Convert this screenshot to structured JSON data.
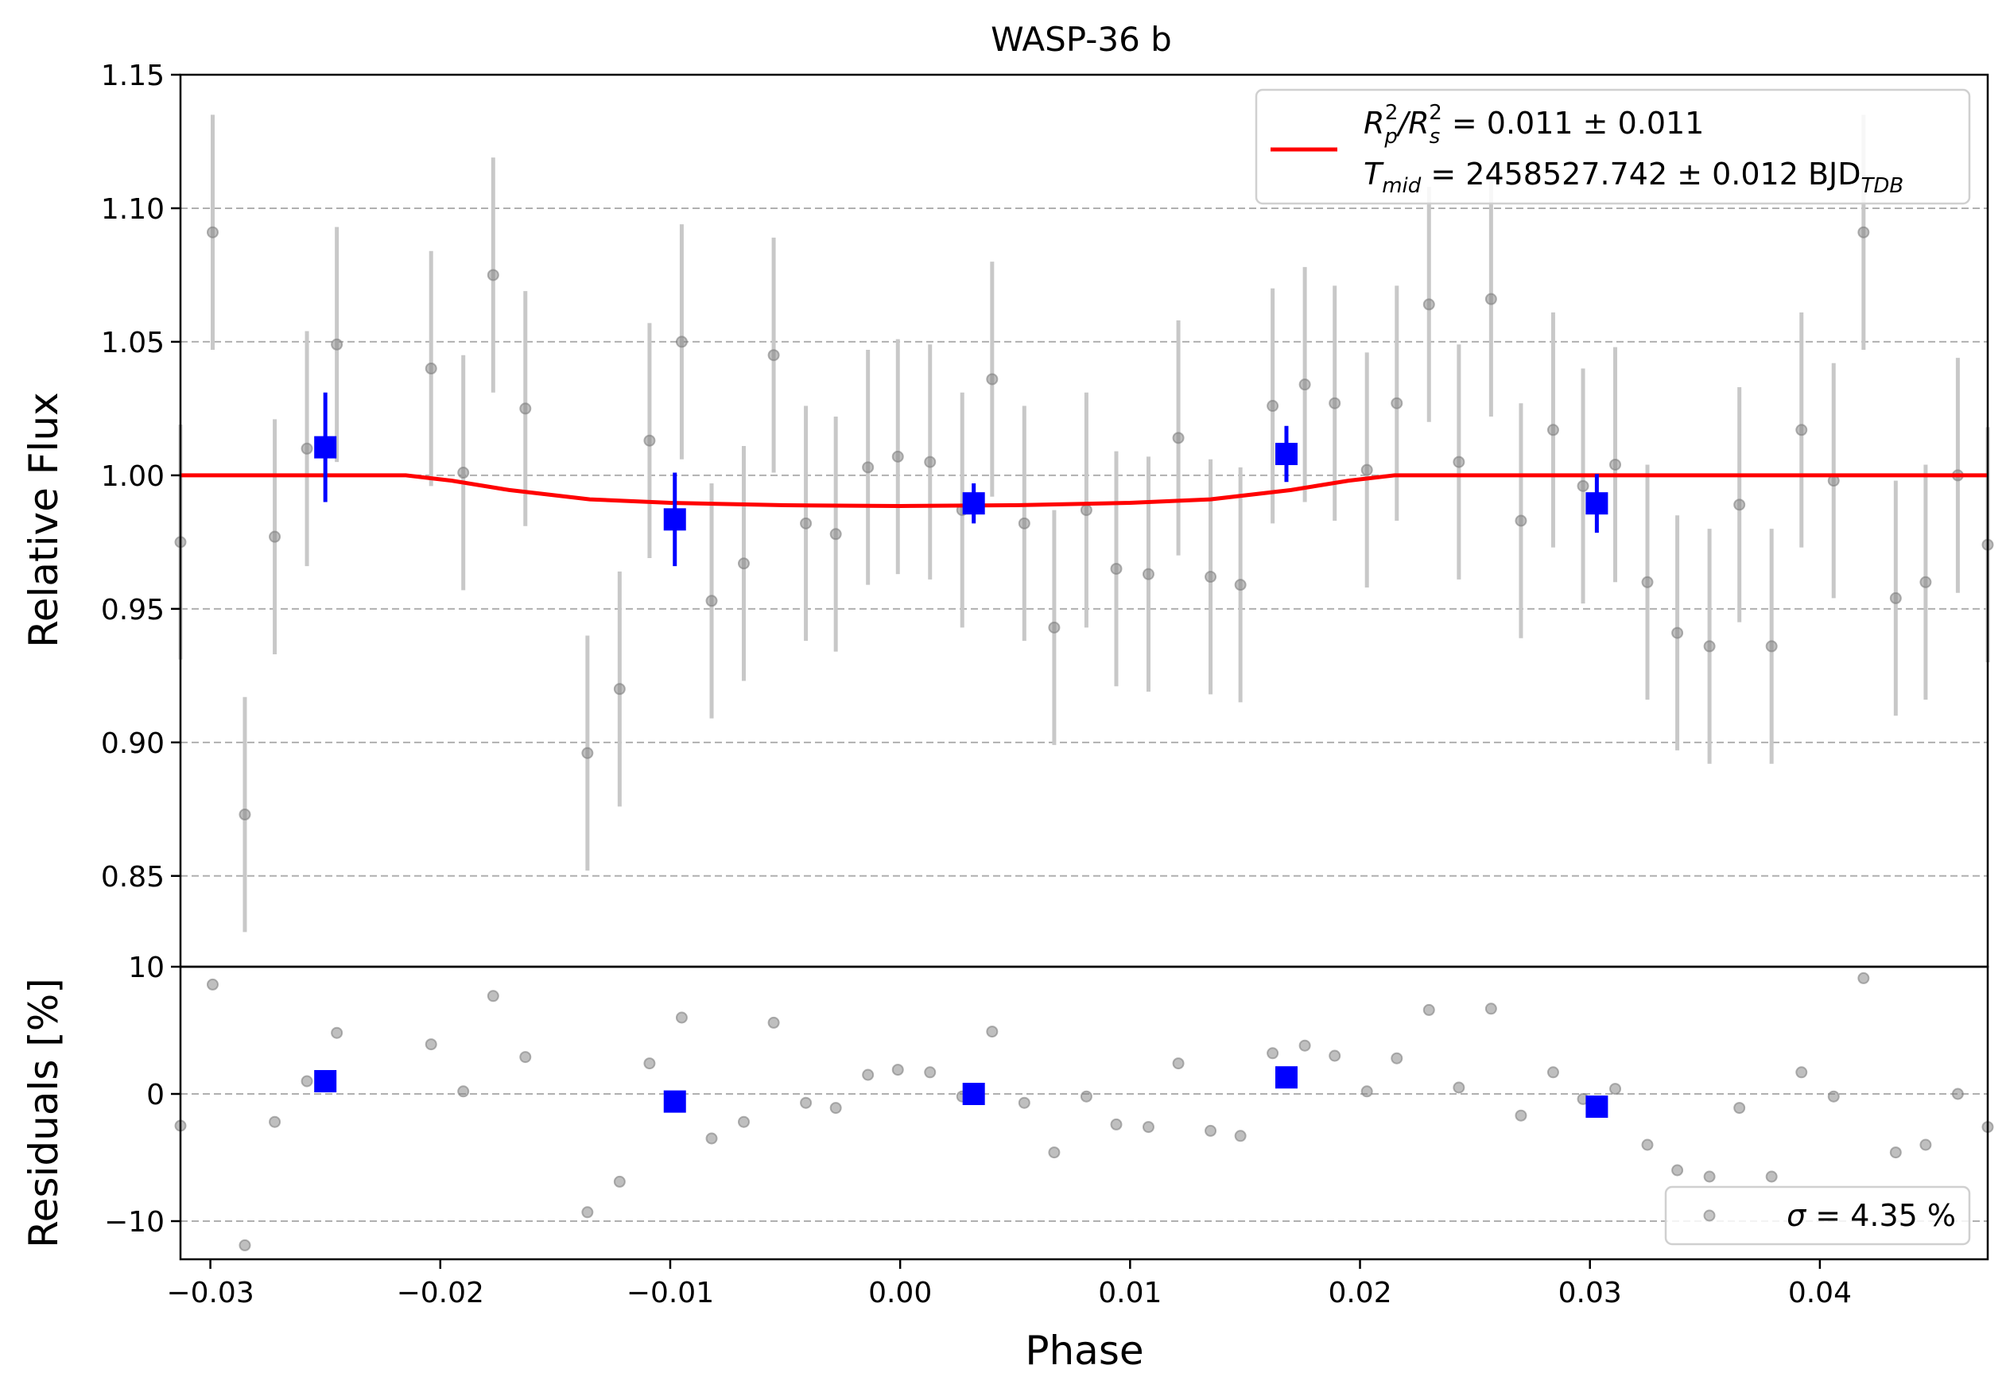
{
  "chart_data": [
    {
      "type": "scatter",
      "title": "WASP-36 b",
      "xlabel": "Phase",
      "ylabel": "Relative Flux",
      "xlim": [
        -0.0313,
        0.0473
      ],
      "ylim": [
        0.816,
        1.15
      ],
      "yticks": [
        "0.85",
        "0.90",
        "0.95",
        "1.00",
        "1.05",
        "1.10",
        "1.15"
      ],
      "grid": "horizontal dashed",
      "legend": {
        "placement": "top-right",
        "line1_pre": "R",
        "line1_sub1": "p",
        "line1_sup1": "2",
        "line1_mid": "/R",
        "line1_sub2": "s",
        "line1_sup2": "2",
        "line1_post": " = 0.011 ± 0.011",
        "line2_pre": "T",
        "line2_sub": "mid",
        "line2_post": " = 2458527.742 ± 0.012 BJD",
        "line2_unit_sub": "TDB"
      },
      "colors": {
        "data": "#808080",
        "errorbar": "#c8c8c8",
        "binned": "#0000ff",
        "model": "#ff0000",
        "grid": "#b0b0b0"
      },
      "series": [
        {
          "kind": "data",
          "points": [
            {
              "x": -0.0313,
              "y": 0.975,
              "err": 0.044
            },
            {
              "x": -0.0299,
              "y": 1.091,
              "err": 0.044
            },
            {
              "x": -0.0285,
              "y": 0.873,
              "err": 0.044
            },
            {
              "x": -0.0272,
              "y": 0.977,
              "err": 0.044
            },
            {
              "x": -0.0258,
              "y": 1.01,
              "err": 0.044
            },
            {
              "x": -0.0245,
              "y": 1.049,
              "err": 0.044
            },
            {
              "x": -0.0204,
              "y": 1.04,
              "err": 0.044
            },
            {
              "x": -0.019,
              "y": 1.001,
              "err": 0.044
            },
            {
              "x": -0.0177,
              "y": 1.075,
              "err": 0.044
            },
            {
              "x": -0.0163,
              "y": 1.025,
              "err": 0.044
            },
            {
              "x": -0.0136,
              "y": 0.896,
              "err": 0.044
            },
            {
              "x": -0.0122,
              "y": 0.92,
              "err": 0.044
            },
            {
              "x": -0.0109,
              "y": 1.013,
              "err": 0.044
            },
            {
              "x": -0.0095,
              "y": 1.05,
              "err": 0.044
            },
            {
              "x": -0.0082,
              "y": 0.953,
              "err": 0.044
            },
            {
              "x": -0.0068,
              "y": 0.967,
              "err": 0.044
            },
            {
              "x": -0.0055,
              "y": 1.045,
              "err": 0.044
            },
            {
              "x": -0.0041,
              "y": 0.982,
              "err": 0.044
            },
            {
              "x": -0.0028,
              "y": 0.978,
              "err": 0.044
            },
            {
              "x": -0.0014,
              "y": 1.003,
              "err": 0.044
            },
            {
              "x": -0.0001,
              "y": 1.007,
              "err": 0.044
            },
            {
              "x": 0.0013,
              "y": 1.005,
              "err": 0.044
            },
            {
              "x": 0.0027,
              "y": 0.987,
              "err": 0.044
            },
            {
              "x": 0.004,
              "y": 1.036,
              "err": 0.044
            },
            {
              "x": 0.0054,
              "y": 0.982,
              "err": 0.044
            },
            {
              "x": 0.0067,
              "y": 0.943,
              "err": 0.044
            },
            {
              "x": 0.0081,
              "y": 0.987,
              "err": 0.044
            },
            {
              "x": 0.0094,
              "y": 0.965,
              "err": 0.044
            },
            {
              "x": 0.0108,
              "y": 0.963,
              "err": 0.044
            },
            {
              "x": 0.0121,
              "y": 1.014,
              "err": 0.044
            },
            {
              "x": 0.0135,
              "y": 0.962,
              "err": 0.044
            },
            {
              "x": 0.0148,
              "y": 0.959,
              "err": 0.044
            },
            {
              "x": 0.0162,
              "y": 1.026,
              "err": 0.044
            },
            {
              "x": 0.0176,
              "y": 1.034,
              "err": 0.044
            },
            {
              "x": 0.0189,
              "y": 1.027,
              "err": 0.044
            },
            {
              "x": 0.0203,
              "y": 1.002,
              "err": 0.044
            },
            {
              "x": 0.0216,
              "y": 1.027,
              "err": 0.044
            },
            {
              "x": 0.023,
              "y": 1.064,
              "err": 0.044
            },
            {
              "x": 0.0243,
              "y": 1.005,
              "err": 0.044
            },
            {
              "x": 0.0257,
              "y": 1.066,
              "err": 0.044
            },
            {
              "x": 0.027,
              "y": 0.983,
              "err": 0.044
            },
            {
              "x": 0.0284,
              "y": 1.017,
              "err": 0.044
            },
            {
              "x": 0.0297,
              "y": 0.996,
              "err": 0.044
            },
            {
              "x": 0.0311,
              "y": 1.004,
              "err": 0.044
            },
            {
              "x": 0.0325,
              "y": 0.96,
              "err": 0.044
            },
            {
              "x": 0.0338,
              "y": 0.941,
              "err": 0.044
            },
            {
              "x": 0.0352,
              "y": 0.936,
              "err": 0.044
            },
            {
              "x": 0.0365,
              "y": 0.989,
              "err": 0.044
            },
            {
              "x": 0.0379,
              "y": 0.936,
              "err": 0.044
            },
            {
              "x": 0.0392,
              "y": 1.017,
              "err": 0.044
            },
            {
              "x": 0.0406,
              "y": 0.998,
              "err": 0.044
            },
            {
              "x": 0.0419,
              "y": 1.091,
              "err": 0.044
            },
            {
              "x": 0.0433,
              "y": 0.954,
              "err": 0.044
            },
            {
              "x": 0.0446,
              "y": 0.96,
              "err": 0.044
            },
            {
              "x": 0.046,
              "y": 1.0,
              "err": 0.044
            },
            {
              "x": 0.0473,
              "y": 0.974,
              "err": 0.044
            }
          ]
        },
        {
          "kind": "binned",
          "points": [
            {
              "x": -0.025,
              "y": 1.0105,
              "err": 0.0205
            },
            {
              "x": -0.0098,
              "y": 0.9835,
              "err": 0.0175
            },
            {
              "x": 0.0032,
              "y": 0.9895,
              "err": 0.0075
            },
            {
              "x": 0.0168,
              "y": 1.008,
              "err": 0.0105
            },
            {
              "x": 0.0303,
              "y": 0.9895,
              "err": 0.011
            }
          ]
        },
        {
          "kind": "model",
          "points": [
            {
              "x": -0.0313,
              "y": 1.0
            },
            {
              "x": -0.0215,
              "y": 1.0
            },
            {
              "x": -0.0195,
              "y": 0.998
            },
            {
              "x": -0.017,
              "y": 0.9945
            },
            {
              "x": -0.0135,
              "y": 0.991
            },
            {
              "x": -0.01,
              "y": 0.9897
            },
            {
              "x": -0.005,
              "y": 0.9888
            },
            {
              "x": 0.0,
              "y": 0.9885
            },
            {
              "x": 0.005,
              "y": 0.9888
            },
            {
              "x": 0.01,
              "y": 0.9897
            },
            {
              "x": 0.0135,
              "y": 0.991
            },
            {
              "x": 0.017,
              "y": 0.9945
            },
            {
              "x": 0.0195,
              "y": 0.998
            },
            {
              "x": 0.0215,
              "y": 1.0
            },
            {
              "x": 0.0473,
              "y": 1.0
            }
          ]
        }
      ]
    },
    {
      "type": "scatter",
      "xlabel": "Phase",
      "ylabel": "Residuals [%]",
      "xlim": [
        -0.0313,
        0.0473
      ],
      "ylim": [
        -13.0,
        10.0
      ],
      "yticks": [
        "−10",
        "0",
        "10"
      ],
      "xticks": [
        {
          "v": -0.03,
          "label": "−0.03"
        },
        {
          "v": -0.02,
          "label": "−0.02"
        },
        {
          "v": -0.01,
          "label": "−0.01"
        },
        {
          "v": 0.0,
          "label": "0.00"
        },
        {
          "v": 0.01,
          "label": "0.01"
        },
        {
          "v": 0.02,
          "label": "0.02"
        },
        {
          "v": 0.03,
          "label": "0.03"
        },
        {
          "v": 0.04,
          "label": "0.04"
        }
      ],
      "grid": "horizontal dashed",
      "legend": {
        "placement": "bottom-right",
        "sigma_symbol": "σ",
        "text": " = 4.35 %"
      },
      "series": [
        {
          "kind": "data",
          "points": [
            {
              "x": -0.0313,
              "y": -2.5
            },
            {
              "x": -0.0299,
              "y": 8.6
            },
            {
              "x": -0.0285,
              "y": -11.9
            },
            {
              "x": -0.0272,
              "y": -2.2
            },
            {
              "x": -0.0258,
              "y": 1.0
            },
            {
              "x": -0.0245,
              "y": 4.8
            },
            {
              "x": -0.0204,
              "y": 3.9
            },
            {
              "x": -0.019,
              "y": 0.2
            },
            {
              "x": -0.0177,
              "y": 7.7
            },
            {
              "x": -0.0163,
              "y": 2.9
            },
            {
              "x": -0.0136,
              "y": -9.3
            },
            {
              "x": -0.0122,
              "y": -6.9
            },
            {
              "x": -0.0109,
              "y": 2.4
            },
            {
              "x": -0.0095,
              "y": 6.0
            },
            {
              "x": -0.0082,
              "y": -3.5
            },
            {
              "x": -0.0068,
              "y": -2.2
            },
            {
              "x": -0.0055,
              "y": 5.6
            },
            {
              "x": -0.0041,
              "y": -0.7
            },
            {
              "x": -0.0028,
              "y": -1.1
            },
            {
              "x": -0.0014,
              "y": 1.5
            },
            {
              "x": -0.0001,
              "y": 1.9
            },
            {
              "x": 0.0013,
              "y": 1.7
            },
            {
              "x": 0.0027,
              "y": -0.2
            },
            {
              "x": 0.004,
              "y": 4.9
            },
            {
              "x": 0.0054,
              "y": -0.7
            },
            {
              "x": 0.0067,
              "y": -4.6
            },
            {
              "x": 0.0081,
              "y": -0.2
            },
            {
              "x": 0.0094,
              "y": -2.4
            },
            {
              "x": 0.0108,
              "y": -2.6
            },
            {
              "x": 0.0121,
              "y": 2.4
            },
            {
              "x": 0.0135,
              "y": -2.9
            },
            {
              "x": 0.0148,
              "y": -3.3
            },
            {
              "x": 0.0162,
              "y": 3.2
            },
            {
              "x": 0.0176,
              "y": 3.8
            },
            {
              "x": 0.0189,
              "y": 3.0
            },
            {
              "x": 0.0203,
              "y": 0.2
            },
            {
              "x": 0.0216,
              "y": 2.8
            },
            {
              "x": 0.023,
              "y": 6.6
            },
            {
              "x": 0.0243,
              "y": 0.5
            },
            {
              "x": 0.0257,
              "y": 6.7
            },
            {
              "x": 0.027,
              "y": -1.7
            },
            {
              "x": 0.0284,
              "y": 1.7
            },
            {
              "x": 0.0297,
              "y": -0.4
            },
            {
              "x": 0.0311,
              "y": 0.4
            },
            {
              "x": 0.0325,
              "y": -4.0
            },
            {
              "x": 0.0338,
              "y": -6.0
            },
            {
              "x": 0.0352,
              "y": -6.5
            },
            {
              "x": 0.0365,
              "y": -1.1
            },
            {
              "x": 0.0379,
              "y": -6.5
            },
            {
              "x": 0.0392,
              "y": 1.7
            },
            {
              "x": 0.0406,
              "y": -0.2
            },
            {
              "x": 0.0419,
              "y": 9.1
            },
            {
              "x": 0.0433,
              "y": -4.6
            },
            {
              "x": 0.0446,
              "y": -4.0
            },
            {
              "x": 0.046,
              "y": 0.0
            },
            {
              "x": 0.0473,
              "y": -2.6
            }
          ]
        },
        {
          "kind": "binned",
          "points": [
            {
              "x": -0.025,
              "y": 1.0
            },
            {
              "x": -0.0098,
              "y": -0.6
            },
            {
              "x": 0.0032,
              "y": 0.0
            },
            {
              "x": 0.0168,
              "y": 1.3
            },
            {
              "x": 0.0303,
              "y": -1.0
            }
          ]
        }
      ]
    }
  ]
}
